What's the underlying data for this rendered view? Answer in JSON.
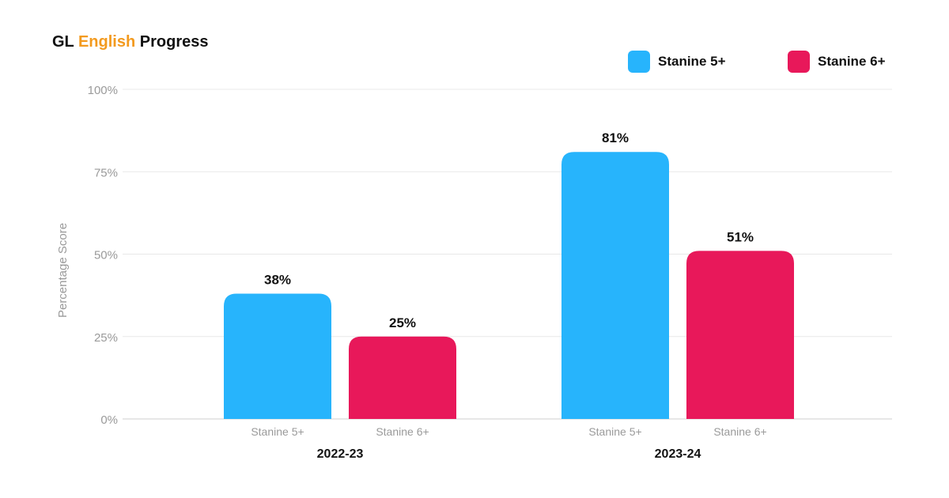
{
  "chart_data": {
    "type": "bar",
    "title": {
      "parts": [
        {
          "text": "GL ",
          "color": "#111111"
        },
        {
          "text": "English",
          "color": "#f39a1e"
        },
        {
          "text": " Progress",
          "color": "#111111"
        }
      ]
    },
    "ylabel": "Percentage Score",
    "ylim": [
      0,
      100
    ],
    "yticks": [
      {
        "value": 0,
        "label": "0%"
      },
      {
        "value": 25,
        "label": "25%"
      },
      {
        "value": 50,
        "label": "50%"
      },
      {
        "value": 75,
        "label": "75%"
      },
      {
        "value": 100,
        "label": "100%"
      }
    ],
    "grid": true,
    "legend": "top-right",
    "categories": [
      "2022-23",
      "2023-24"
    ],
    "series": [
      {
        "name": "Stanine 5+",
        "color": "#27b4fc",
        "values": [
          38,
          81
        ],
        "labels": [
          "38%",
          "81%"
        ]
      },
      {
        "name": "Stanine 6+",
        "color": "#e8185a",
        "values": [
          25,
          51
        ],
        "labels": [
          "25%",
          "51%"
        ]
      }
    ]
  }
}
